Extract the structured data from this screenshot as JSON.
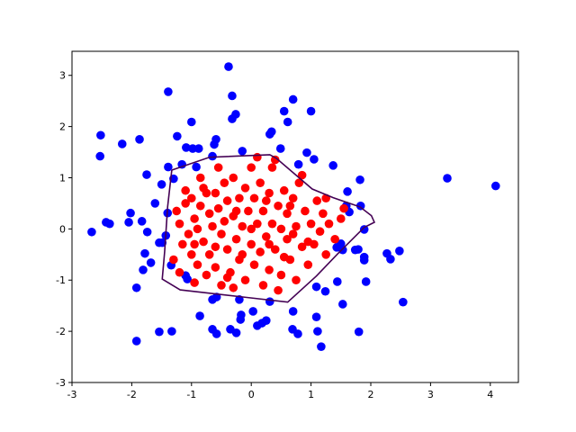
{
  "chart_data": {
    "type": "scatter",
    "xlim": [
      -3,
      4.47
    ],
    "ylim": [
      -3,
      3.47
    ],
    "xticks": [
      -3,
      -2,
      -1,
      0,
      1,
      2,
      3,
      4
    ],
    "yticks": [
      -3,
      -2,
      -1,
      0,
      1,
      2,
      3
    ],
    "series": [
      {
        "color": "#0000ff",
        "x": [
          -0.38,
          -1.39,
          -0.32,
          0.7,
          0.55,
          1.0,
          -0.26,
          -0.32,
          -1.0,
          0.61,
          0.34,
          0.31,
          -2.52,
          -1.24,
          -2.16,
          -1.87,
          -1.09,
          -0.98,
          -0.88,
          -0.59,
          -0.62,
          -0.15,
          0.49,
          0.93,
          -2.53,
          -0.65,
          1.05,
          0.79,
          -1.16,
          -0.92,
          -1.39,
          1.37,
          -1.75,
          -1.3,
          -1.5,
          1.82,
          3.28,
          4.09,
          1.61,
          -1.61,
          -2.02,
          -1.4,
          1.83,
          1.59,
          1.64,
          -2.05,
          -2.43,
          -2.37,
          -1.83,
          1.89,
          -2.67,
          -1.74,
          -1.43,
          -1.49,
          -1.54,
          1.79,
          1.74,
          1.5,
          1.43,
          1.53,
          -1.78,
          2.27,
          2.48,
          2.33,
          1.89,
          1.89,
          -1.68,
          -1.34,
          -1.81,
          -1.1,
          -1.07,
          1.44,
          1.92,
          1.09,
          -0.2,
          -0.65,
          -0.58,
          -1.92,
          1.24,
          1.53,
          2.54,
          0.03,
          0.31,
          0.7,
          -0.17,
          -0.18,
          1.09,
          -0.86,
          0.25,
          0.18,
          0.1,
          1.11,
          0.69,
          -0.65,
          -0.35,
          -1.54,
          -1.33,
          -0.25,
          -0.58,
          0.78,
          1.8,
          -1.92,
          1.17
        ],
        "y": [
          3.17,
          2.68,
          2.6,
          2.53,
          2.3,
          2.3,
          2.24,
          2.15,
          2.09,
          2.09,
          1.9,
          1.85,
          1.83,
          1.81,
          1.66,
          1.75,
          1.59,
          1.57,
          1.57,
          1.75,
          1.65,
          1.52,
          1.57,
          1.49,
          1.42,
          1.42,
          1.36,
          1.26,
          1.26,
          1.21,
          1.21,
          1.24,
          1.06,
          0.98,
          0.87,
          0.96,
          0.99,
          0.84,
          0.73,
          0.5,
          0.31,
          0.31,
          0.45,
          0.45,
          0.33,
          0.13,
          0.13,
          0.1,
          0.15,
          -0.01,
          -0.06,
          -0.06,
          -0.13,
          -0.27,
          -0.27,
          -0.4,
          -0.41,
          -0.29,
          -0.36,
          -0.41,
          -0.48,
          -0.48,
          -0.43,
          -0.59,
          -0.55,
          -0.61,
          -0.66,
          -0.71,
          -0.8,
          -0.91,
          -0.98,
          -1.03,
          -1.03,
          -1.13,
          -1.38,
          -1.38,
          -1.33,
          -1.15,
          -1.22,
          -1.47,
          -1.43,
          -1.61,
          -1.42,
          -1.61,
          -1.68,
          -1.77,
          -1.72,
          -1.7,
          -1.79,
          -1.84,
          -1.89,
          -2.0,
          -1.96,
          -1.96,
          -1.96,
          -2.01,
          -2.0,
          -2.03,
          -2.05,
          -2.05,
          -2.01,
          -2.19,
          -2.3
        ]
      },
      {
        "color": "#ff0000",
        "x": [
          -1.25,
          -1.2,
          -1.15,
          -1.1,
          -1.05,
          -1.0,
          -1.0,
          -0.95,
          -0.9,
          -0.9,
          -0.85,
          -0.8,
          -0.8,
          -0.75,
          -0.7,
          -0.7,
          -0.65,
          -0.6,
          -0.6,
          -0.55,
          -0.5,
          -0.5,
          -0.45,
          -0.45,
          -0.4,
          -0.4,
          -0.35,
          -0.3,
          -0.3,
          -0.25,
          -0.2,
          -0.2,
          -0.15,
          -0.1,
          -0.1,
          -0.05,
          0.0,
          0.0,
          0.05,
          0.05,
          0.1,
          0.15,
          0.15,
          0.2,
          0.2,
          0.25,
          0.3,
          0.3,
          0.35,
          0.4,
          0.4,
          0.45,
          0.5,
          0.5,
          0.55,
          0.6,
          0.6,
          0.65,
          0.7,
          0.75,
          0.75,
          0.8,
          0.85,
          0.9,
          0.95,
          1.0,
          1.05,
          1.1,
          1.15,
          1.2,
          1.25,
          1.3,
          1.4,
          1.5,
          1.55,
          0.35,
          -0.85,
          -0.55,
          0.1,
          0.85,
          -1.3,
          -1.2,
          -0.95,
          -0.3,
          0.45,
          0.0,
          -0.6,
          0.25,
          -0.15,
          0.65,
          -0.75,
          0.95,
          -0.4,
          0.3,
          -1.1,
          1.25,
          -0.25,
          0.55,
          -0.95,
          0.7
        ],
        "y": [
          0.35,
          0.1,
          -0.3,
          0.5,
          -0.1,
          0.6,
          -0.5,
          0.2,
          -0.7,
          0.0,
          0.45,
          -0.25,
          0.8,
          -0.9,
          0.3,
          -0.5,
          0.05,
          0.7,
          -0.75,
          0.4,
          -0.1,
          -1.1,
          0.9,
          0.15,
          -0.4,
          0.55,
          -0.85,
          0.25,
          1.0,
          -0.2,
          0.6,
          -0.6,
          0.05,
          -1.0,
          0.8,
          0.35,
          -0.3,
          1.2,
          0.6,
          -0.7,
          0.1,
          -0.45,
          0.9,
          0.35,
          -1.1,
          -0.15,
          0.7,
          -0.8,
          0.1,
          1.35,
          -0.4,
          0.45,
          -0.9,
          0.0,
          0.75,
          -0.2,
          0.3,
          -0.6,
          0.6,
          -1.0,
          0.05,
          0.9,
          -0.35,
          0.35,
          -0.7,
          0.1,
          -0.3,
          0.55,
          -0.05,
          0.3,
          -0.5,
          0.1,
          -0.2,
          0.2,
          0.4,
          1.2,
          1.0,
          1.2,
          1.4,
          1.05,
          -0.6,
          -0.85,
          -1.05,
          -1.15,
          -1.2,
          0.0,
          -0.35,
          0.55,
          -0.5,
          0.45,
          0.7,
          -0.25,
          -0.95,
          -0.3,
          0.75,
          0.6,
          0.35,
          -0.55,
          -0.3,
          -0.1
        ]
      }
    ],
    "contour": {
      "color": "#440154",
      "x": [
        -1.33,
        -0.7,
        0.31,
        0.42,
        1.02,
        1.37,
        1.82,
        2.01,
        2.06,
        1.89,
        1.46,
        1.09,
        0.61,
        -0.14,
        -1.19,
        -1.49,
        -1.45,
        -1.4,
        -1.33
      ],
      "y": [
        1.15,
        1.4,
        1.45,
        1.38,
        0.78,
        0.61,
        0.43,
        0.26,
        0.13,
        0.03,
        -0.47,
        -0.92,
        -1.43,
        -1.33,
        -1.19,
        -0.98,
        -0.45,
        0.43,
        1.15
      ]
    }
  }
}
